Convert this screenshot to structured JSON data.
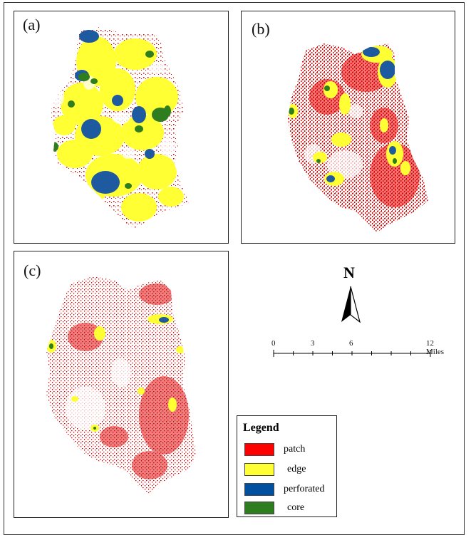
{
  "panels": [
    {
      "label": "(a)"
    },
    {
      "label": "(b)"
    },
    {
      "label": "(c)"
    }
  ],
  "north_arrow": {
    "letter": "N"
  },
  "scale_bar": {
    "ticks": [
      "0",
      "3",
      "6",
      "12 Miles"
    ]
  },
  "legend": {
    "title": "Legend",
    "items": [
      {
        "label": "patch",
        "color": "#ff0000"
      },
      {
        "label": "edge",
        "color": "#ffff00"
      },
      {
        "label": "perforated",
        "color": "#0050a0"
      },
      {
        "label": "core",
        "color": "#2e7d1f"
      }
    ]
  }
}
